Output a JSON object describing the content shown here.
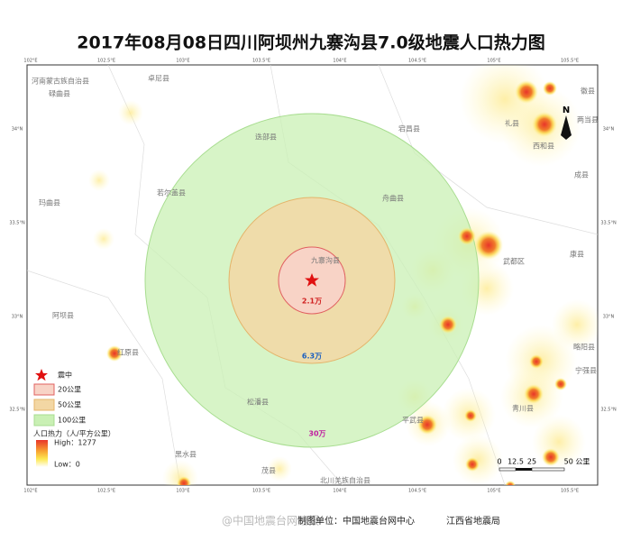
{
  "title": "2017年08月08日四川阿坝州九寨沟县7.0级地震人口热力图",
  "map": {
    "lon_labels": [
      "102°E",
      "102.5°E",
      "103°E",
      "103.5°E",
      "104°E",
      "104.5°E",
      "105°E",
      "105.5°E"
    ],
    "lat_labels": [
      "34°N",
      "33.5°N",
      "33°N",
      "32.5°N"
    ],
    "places": [
      "河南蒙古族自治县",
      "碌曲县",
      "卓尼县",
      "迭部县",
      "舟曲县",
      "宕昌县",
      "礼县",
      "西和县",
      "成县",
      "康县",
      "武都区",
      "九寨沟县",
      "若尔盖县",
      "玛曲县",
      "阿坝县",
      "红原县",
      "松潘县",
      "黑水县",
      "茂县",
      "北川羌族自治县",
      "平武县",
      "青川县",
      "徽县",
      "两当县",
      "略阳县",
      "宁强县"
    ],
    "ring_labels": [
      "2.1万",
      "6.3万",
      "30万"
    ],
    "north": "N"
  },
  "legend": {
    "epicenter": "震中",
    "ring_20": "20公里",
    "ring_50": "50公里",
    "ring_100": "100公里",
    "heat_title": "人口热力（人/平方公里）",
    "high": "High：1277",
    "low": "Low：0"
  },
  "scale_bar": [
    "0",
    "12.5",
    "25",
    "50 公里"
  ],
  "footer": {
    "watermark": "@中国地震台网速报",
    "maker": "制图单位：中国地震台网中心",
    "partner": "江西省地震局"
  }
}
